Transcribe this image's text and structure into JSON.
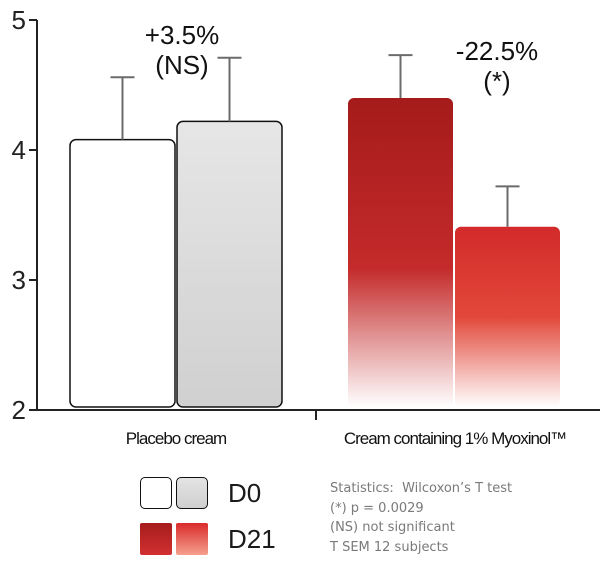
{
  "chart_data": {
    "type": "bar",
    "ylim": [
      2,
      5
    ],
    "yticks": [
      "2",
      "3",
      "4",
      "5"
    ],
    "categories": [
      "Placebo cream",
      "Cream containing 1% Myoxinol™"
    ],
    "series": [
      {
        "name": "D0",
        "values": [
          4.08,
          4.4
        ],
        "errors": [
          0.48,
          0.33
        ]
      },
      {
        "name": "D21",
        "values": [
          4.22,
          3.41
        ],
        "errors": [
          0.49,
          0.31
        ]
      }
    ],
    "annotations": [
      {
        "category": 0,
        "lines": [
          "+3.5%",
          "(NS)"
        ]
      },
      {
        "category": 1,
        "lines": [
          "-22.5%",
          "(*)"
        ]
      }
    ],
    "grid": false
  },
  "legend": {
    "items": [
      {
        "label": "D0",
        "swatches": [
          "#ffffff",
          "#d6d6d6"
        ]
      },
      {
        "label": "D21",
        "swatches": [
          "#b31f1f",
          "#e03a34"
        ]
      }
    ]
  },
  "notes": [
    "Statistics:  Wilcoxon’s T test",
    "(*) p = 0.0029",
    "(NS) not significant",
    "T SEM 12 subjects"
  ],
  "colors": {
    "placebo_d0": "#ffffff",
    "placebo_d21": "#d6d6d6",
    "myoxinol_d0": "#b31f1f",
    "myoxinol_d21": "#e03a34",
    "error_bar": "#6b6b6b",
    "axis": "#222222"
  }
}
